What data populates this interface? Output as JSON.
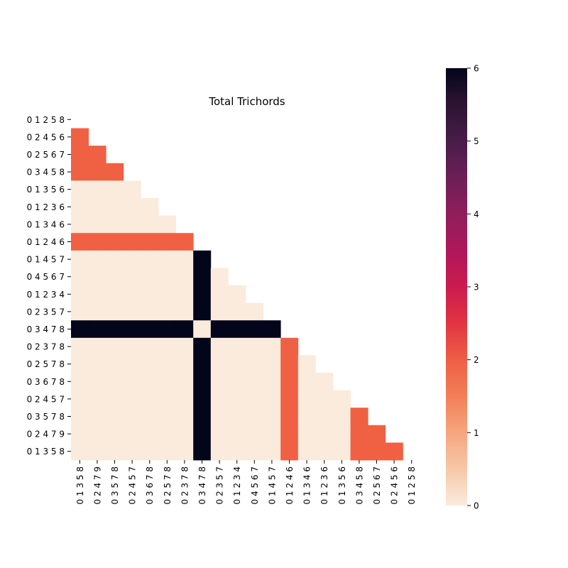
{
  "chart_data": {
    "type": "heatmap",
    "title": "Total Trichords",
    "row_labels": [
      "0 1 2 5 8",
      "0 2 4 5 6",
      "0 2 5 6 7",
      "0 3 4 5 8",
      "0 1 3 5 6",
      "0 1 2 3 6",
      "0 1 3 4 6",
      "0 1 2 4 6",
      "0 1 4 5 7",
      "0 4 5 6 7",
      "0 1 2 3 4",
      "0 2 3 5 7",
      "0 3 4 7 8",
      "0 2 3 7 8",
      "0 2 5 7 8",
      "0 3 6 7 8",
      "0 2 4 5 7",
      "0 3 5 7 8",
      "0 2 4 7 9",
      "0 1 3 5 8"
    ],
    "col_labels": [
      "0 1 3 5 8",
      "0 2 4 7 9",
      "0 3 5 7 8",
      "0 2 4 5 7",
      "0 3 6 7 8",
      "0 2 5 7 8",
      "0 2 3 7 8",
      "0 3 4 7 8",
      "0 2 3 5 7",
      "0 1 2 3 4",
      "0 4 5 6 7",
      "0 1 4 5 7",
      "0 1 2 4 6",
      "0 1 3 4 6",
      "0 1 2 3 6",
      "0 1 3 5 6",
      "0 3 4 5 8",
      "0 2 5 6 7",
      "0 2 4 5 6",
      "0 1 2 5 8"
    ],
    "values": [
      [],
      [
        2
      ],
      [
        2,
        2
      ],
      [
        2,
        2,
        2
      ],
      [
        0,
        0,
        0,
        0
      ],
      [
        0,
        0,
        0,
        0,
        0
      ],
      [
        0,
        0,
        0,
        0,
        0,
        0
      ],
      [
        2,
        2,
        2,
        2,
        2,
        2,
        2
      ],
      [
        0,
        0,
        0,
        0,
        0,
        0,
        0,
        6
      ],
      [
        0,
        0,
        0,
        0,
        0,
        0,
        0,
        6,
        0
      ],
      [
        0,
        0,
        0,
        0,
        0,
        0,
        0,
        6,
        0,
        0
      ],
      [
        0,
        0,
        0,
        0,
        0,
        0,
        0,
        6,
        0,
        0,
        0
      ],
      [
        6,
        6,
        6,
        6,
        6,
        6,
        6,
        0,
        6,
        6,
        6,
        6
      ],
      [
        0,
        0,
        0,
        0,
        0,
        0,
        0,
        6,
        0,
        0,
        0,
        0,
        2
      ],
      [
        0,
        0,
        0,
        0,
        0,
        0,
        0,
        6,
        0,
        0,
        0,
        0,
        2,
        0
      ],
      [
        0,
        0,
        0,
        0,
        0,
        0,
        0,
        6,
        0,
        0,
        0,
        0,
        2,
        0,
        0
      ],
      [
        0,
        0,
        0,
        0,
        0,
        0,
        0,
        6,
        0,
        0,
        0,
        0,
        2,
        0,
        0,
        0
      ],
      [
        0,
        0,
        0,
        0,
        0,
        0,
        0,
        6,
        0,
        0,
        0,
        0,
        2,
        0,
        0,
        0,
        2
      ],
      [
        0,
        0,
        0,
        0,
        0,
        0,
        0,
        6,
        0,
        0,
        0,
        0,
        2,
        0,
        0,
        0,
        2,
        2
      ],
      [
        0,
        0,
        0,
        0,
        0,
        0,
        0,
        6,
        0,
        0,
        0,
        0,
        2,
        0,
        0,
        0,
        2,
        2,
        2
      ]
    ],
    "colorbar": {
      "min": 0,
      "max": 6,
      "ticks": [
        "0",
        "1",
        "2",
        "3",
        "4",
        "5",
        "6"
      ]
    },
    "colors": {
      "0": "#faebdd",
      "2": "#f06043",
      "6": "#03051a"
    }
  }
}
